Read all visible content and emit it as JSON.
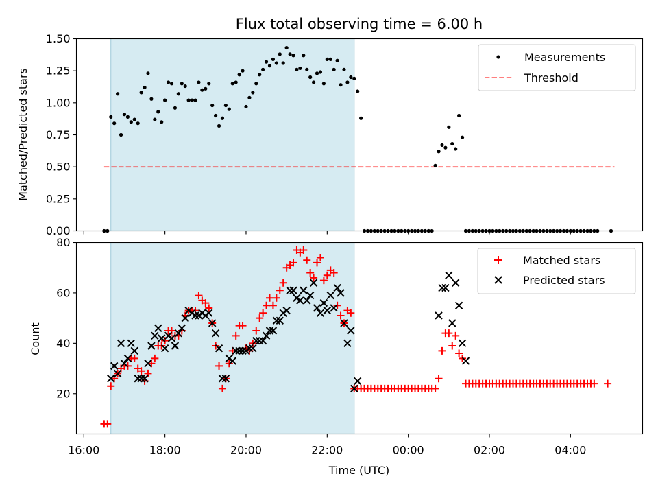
{
  "chart_data": [
    {
      "type": "scatter",
      "title": "Flux total observing time = 6.00 h",
      "ylabel": "Matched/Predicted stars",
      "xlabel": "",
      "ylim": [
        0,
        1.5
      ],
      "yticks": [
        "0.00",
        "0.25",
        "0.50",
        "0.75",
        "1.00",
        "1.25",
        "1.50"
      ],
      "shaded_span": [
        "16:40",
        "22:40"
      ],
      "threshold": 0.5,
      "threshold_range": [
        "16:30",
        "05:05"
      ],
      "legend": {
        "placement": "top-right",
        "items": [
          "Measurements",
          "Threshold"
        ]
      },
      "series": [
        {
          "name": "Measurements",
          "x_start": "16:30",
          "interval_min": 5,
          "values": [
            0,
            0,
            0.89,
            0.84,
            1.07,
            0.75,
            0.91,
            0.89,
            0.85,
            0.87,
            0.84,
            1.08,
            1.12,
            1.23,
            1.03,
            0.87,
            0.93,
            0.85,
            1.02,
            1.16,
            1.15,
            0.96,
            1.07,
            1.15,
            1.13,
            1.02,
            1.02,
            1.02,
            1.16,
            1.1,
            1.11,
            1.15,
            0.98,
            0.9,
            0.82,
            0.88,
            0.98,
            0.95,
            1.15,
            1.16,
            1.22,
            1.25,
            0.97,
            1.04,
            1.08,
            1.15,
            1.22,
            1.26,
            1.32,
            1.29,
            1.34,
            1.31,
            1.38,
            1.31,
            1.43,
            1.38,
            1.37,
            1.26,
            1.27,
            1.37,
            1.26,
            1.2,
            1.16,
            1.23,
            1.24,
            1.15,
            1.34,
            1.34,
            1.26,
            1.33,
            1.14,
            1.26,
            1.16,
            1.2,
            1.19,
            1.09,
            0.88,
            0,
            0,
            0,
            0,
            0,
            0,
            0,
            0,
            0,
            0,
            0,
            0,
            0,
            0,
            0,
            0,
            0,
            0,
            0,
            0,
            0,
            0.51,
            0.62,
            0.67,
            0.65,
            0.81,
            0.68,
            0.64,
            0.9,
            0.73,
            0,
            0,
            0,
            0,
            0,
            0,
            0,
            0,
            0,
            0,
            0,
            0,
            0,
            0,
            0,
            0,
            0,
            0,
            0,
            0,
            0,
            0,
            0,
            0,
            0,
            0,
            0,
            0,
            0,
            0,
            0,
            0,
            0,
            0,
            0,
            0,
            0,
            0,
            0,
            0,
            null,
            null,
            null,
            0
          ]
        }
      ]
    },
    {
      "type": "scatter",
      "title": "",
      "xlabel": "Time (UTC)",
      "ylabel": "Count",
      "ylim": [
        4,
        80
      ],
      "yticks": [
        "20",
        "40",
        "60",
        "80"
      ],
      "xticks": [
        "16:00",
        "18:00",
        "20:00",
        "22:00",
        "00:00",
        "02:00",
        "04:00"
      ],
      "shaded_span": [
        "16:40",
        "22:40"
      ],
      "legend": {
        "placement": "top-right",
        "items": [
          "Matched stars",
          "Predicted stars"
        ]
      },
      "series": [
        {
          "name": "Matched stars",
          "color": "#ff0000",
          "marker": "plus",
          "x_start": "16:30",
          "interval_min": 5,
          "values": [
            8,
            8,
            23,
            26,
            28,
            30,
            31,
            31,
            34,
            34,
            30,
            29,
            25,
            28,
            32,
            34,
            39,
            39,
            41,
            45,
            45,
            43,
            43,
            45,
            51,
            53,
            53,
            53,
            59,
            57,
            56,
            54,
            48,
            39,
            31,
            22,
            26,
            32,
            37,
            43,
            47,
            47,
            38,
            37,
            40,
            45,
            50,
            52,
            55,
            58,
            55,
            58,
            61,
            64,
            70,
            71,
            72,
            77,
            76,
            77,
            73,
            68,
            66,
            72,
            74,
            65,
            67,
            69,
            68,
            55,
            51,
            48,
            53,
            52,
            22,
            22,
            22,
            22,
            22,
            22,
            22,
            22,
            22,
            22,
            22,
            22,
            22,
            22,
            22,
            22,
            22,
            22,
            22,
            22,
            22,
            22,
            22,
            22,
            22,
            26,
            37,
            44,
            44,
            39,
            43,
            36,
            34,
            24,
            24,
            24,
            24,
            24,
            24,
            24,
            24,
            24,
            24,
            24,
            24,
            24,
            24,
            24,
            24,
            24,
            24,
            24,
            24,
            24,
            24,
            24,
            24,
            24,
            24,
            24,
            24,
            24,
            24,
            24,
            24,
            24,
            24,
            24,
            24,
            24,
            24,
            24,
            null,
            null,
            null,
            24
          ]
        },
        {
          "name": "Predicted stars",
          "color": "#000000",
          "marker": "x",
          "x_start": "16:30",
          "interval_min": 5,
          "values": [
            null,
            null,
            26,
            31,
            28,
            40,
            32,
            34,
            40,
            37,
            26,
            26,
            26,
            32,
            39,
            43,
            46,
            42,
            38,
            43,
            42,
            39,
            44,
            46,
            50,
            53,
            52,
            51,
            51,
            52,
            51,
            52,
            48,
            44,
            38,
            26,
            26,
            34,
            33,
            37,
            37,
            37,
            37,
            38,
            38,
            41,
            41,
            41,
            43,
            45,
            45,
            49,
            49,
            52,
            53,
            61,
            61,
            58,
            57,
            61,
            57,
            59,
            64,
            54,
            52,
            56,
            53,
            59,
            54,
            62,
            60,
            48,
            40,
            45,
            22,
            25,
            null,
            null,
            null,
            null,
            null,
            null,
            null,
            null,
            null,
            null,
            null,
            null,
            null,
            null,
            null,
            null,
            null,
            null,
            null,
            null,
            null,
            null,
            null,
            51,
            62,
            62,
            67,
            48,
            64,
            55,
            40,
            33
          ]
        }
      ]
    }
  ]
}
